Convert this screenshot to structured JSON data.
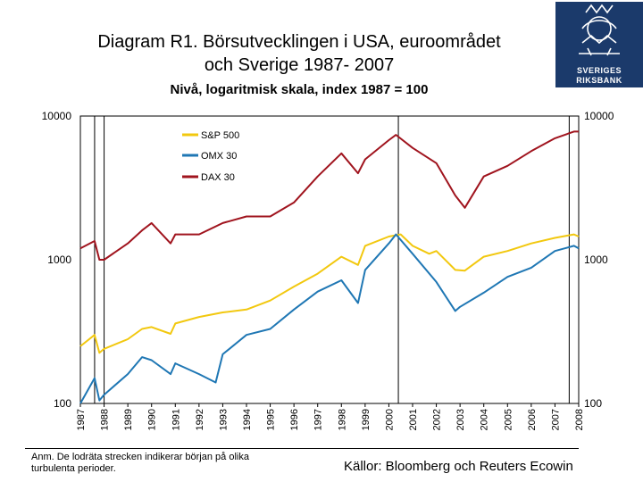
{
  "title_line1": "Diagram R1. Börsutvecklingen i USA, euroområdet",
  "title_line2": "och Sverige 1987- 2007",
  "subtitle": "Nivå, logaritmisk skala, index 1987 = 100",
  "logo": {
    "line1": "SVERIGES",
    "line2": "RIKSBANK"
  },
  "note": "Anm. De lodräta strecken indikerar början på olika turbulenta perioder.",
  "source": "Källor: Bloomberg och Reuters Ecowin",
  "colors": {
    "sp500": "#f2c80f",
    "omx30": "#1f77b4",
    "dax30": "#a0141e",
    "vline": "#000000"
  },
  "chart_data": {
    "type": "line",
    "title": "Diagram R1. Börsutvecklingen i USA, euroområdet och Sverige 1987- 2007",
    "subtitle": "Nivå, logaritmisk skala, index 1987 = 100",
    "yscale": "log",
    "ylim": [
      100,
      10000
    ],
    "xlim": [
      1987,
      2008
    ],
    "y_ticks_left": [
      "10000",
      "1000",
      "100"
    ],
    "y_ticks_right": [
      "10000",
      "1000",
      "100"
    ],
    "x_ticks": [
      "1987",
      "1988",
      "1989",
      "1990",
      "1991",
      "1992",
      "1993",
      "1994",
      "1995",
      "1996",
      "1997",
      "1998",
      "1999",
      "2000",
      "2001",
      "2002",
      "2003",
      "2004",
      "2005",
      "2006",
      "2007",
      "2008"
    ],
    "vertical_lines": [
      1987.6,
      1988.0,
      2000.4,
      2007.6
    ],
    "legend": [
      "S&P 500",
      "OMX 30",
      "DAX 30"
    ],
    "series": [
      {
        "name": "S&P 500",
        "color": "#f2c80f",
        "x": [
          1987,
          1987.6,
          1987.8,
          1988,
          1989,
          1989.6,
          1990,
          1990.8,
          1991,
          1992,
          1993,
          1994,
          1995,
          1996,
          1997,
          1998,
          1998.7,
          1999,
          2000,
          2000.5,
          2001,
          2001.7,
          2002,
          2002.8,
          2003.2,
          2004,
          2005,
          2006,
          2007,
          2007.8,
          2008
        ],
        "y": [
          250,
          300,
          225,
          240,
          280,
          330,
          340,
          305,
          360,
          400,
          430,
          450,
          520,
          650,
          800,
          1050,
          920,
          1250,
          1450,
          1500,
          1250,
          1100,
          1150,
          850,
          840,
          1050,
          1150,
          1300,
          1420,
          1500,
          1450
        ]
      },
      {
        "name": "OMX 30",
        "color": "#1f77b4",
        "x": [
          1987,
          1987.6,
          1987.8,
          1988,
          1989,
          1989.6,
          1990,
          1990.8,
          1991,
          1992,
          1992.7,
          1993,
          1994,
          1995,
          1996,
          1997,
          1998,
          1998.7,
          1999,
          2000,
          2000.3,
          2001,
          2002,
          2002.8,
          2003,
          2004,
          2005,
          2006,
          2007,
          2007.8,
          2008
        ],
        "y": [
          100,
          150,
          105,
          115,
          160,
          210,
          200,
          160,
          190,
          160,
          140,
          220,
          300,
          330,
          450,
          600,
          720,
          500,
          850,
          1300,
          1500,
          1100,
          700,
          440,
          470,
          590,
          760,
          880,
          1150,
          1250,
          1200
        ]
      },
      {
        "name": "DAX 30",
        "color": "#a0141e",
        "x": [
          1987,
          1987.6,
          1987.8,
          1988,
          1989,
          1989.6,
          1990,
          1990.8,
          1991,
          1992,
          1993,
          1994,
          1995,
          1996,
          1997,
          1998,
          1998.7,
          1999,
          2000,
          2000.3,
          2001,
          2002,
          2002.8,
          2003.2,
          2004,
          2005,
          2006,
          2007,
          2007.8,
          2008
        ],
        "y": [
          1200,
          1350,
          1000,
          1000,
          1300,
          1600,
          1800,
          1300,
          1500,
          1500,
          1800,
          2000,
          2000,
          2500,
          3800,
          5500,
          4000,
          5000,
          6800,
          7400,
          6000,
          4700,
          2800,
          2300,
          3800,
          4500,
          5700,
          7000,
          7800,
          7800
        ]
      }
    ]
  }
}
